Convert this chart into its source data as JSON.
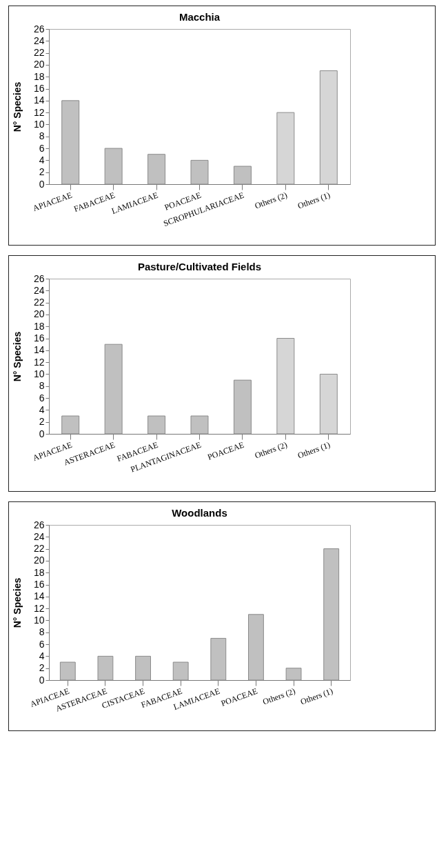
{
  "chart_data": [
    {
      "type": "bar",
      "title": "Macchia",
      "ylabel": "N° Species",
      "categories": [
        "APIACEAE",
        "FABACEAE",
        "LAMIACEAE",
        "POACEAE",
        "SCROPHULARIACEAE",
        "Others (2)",
        "Others (1)"
      ],
      "values": [
        14,
        6,
        5,
        4,
        3,
        12,
        19
      ],
      "colors": [
        "#c0c0c0",
        "#c0c0c0",
        "#c0c0c0",
        "#c0c0c0",
        "#c0c0c0",
        "#d6d6d6",
        "#d6d6d6"
      ],
      "ylim": [
        0,
        26
      ],
      "yticks": [
        0,
        2,
        4,
        6,
        8,
        10,
        12,
        14,
        16,
        18,
        20,
        22,
        24,
        26
      ]
    },
    {
      "type": "bar",
      "title": "Pasture/Cultivated Fields",
      "ylabel": "N° Species",
      "categories": [
        "APIACEAE",
        "ASTERACEAE",
        "FABACEAE",
        "PLANTAGINACEAE",
        "POACEAE",
        "Others (2)",
        "Others (1)"
      ],
      "values": [
        3,
        15,
        3,
        3,
        9,
        16,
        10
      ],
      "colors": [
        "#c0c0c0",
        "#c0c0c0",
        "#c0c0c0",
        "#c0c0c0",
        "#c0c0c0",
        "#d6d6d6",
        "#d6d6d6"
      ],
      "ylim": [
        0,
        26
      ],
      "yticks": [
        0,
        2,
        4,
        6,
        8,
        10,
        12,
        14,
        16,
        18,
        20,
        22,
        24,
        26
      ]
    },
    {
      "type": "bar",
      "title": "Woodlands",
      "ylabel": "N° Species",
      "categories": [
        "APIACEAE",
        "ASTERACEAE",
        "CISTACEAE",
        "FABACEAE",
        "LAMIACEAE",
        "POACEAE",
        "Others (2)",
        "Others (1)"
      ],
      "values": [
        3,
        4,
        4,
        3,
        7,
        11,
        2,
        22
      ],
      "colors": [
        "#c0c0c0",
        "#c0c0c0",
        "#c0c0c0",
        "#c0c0c0",
        "#c0c0c0",
        "#c0c0c0",
        "#c0c0c0",
        "#c0c0c0"
      ],
      "ylim": [
        0,
        26
      ],
      "yticks": [
        0,
        2,
        4,
        6,
        8,
        10,
        12,
        14,
        16,
        18,
        20,
        22,
        24,
        26
      ]
    }
  ]
}
